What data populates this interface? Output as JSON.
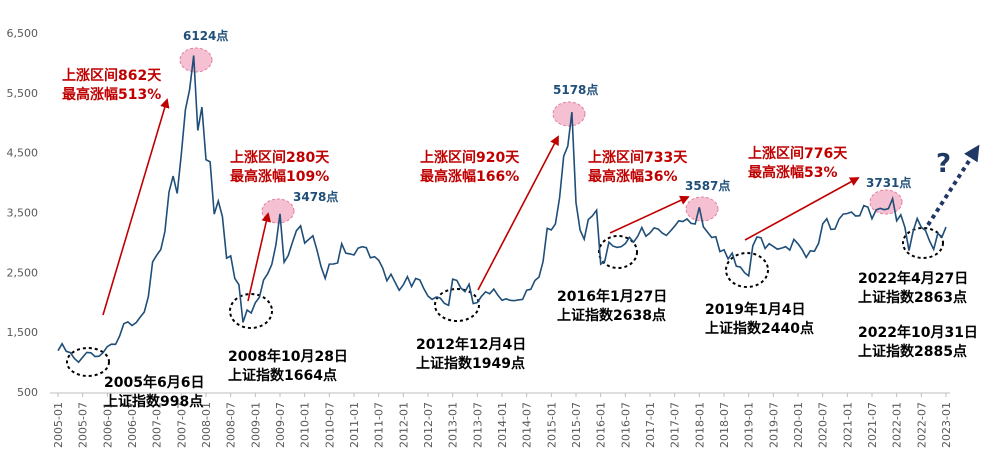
{
  "chart_data": {
    "type": "line",
    "x": [
      "2005-01",
      "2005-02",
      "2005-03",
      "2005-04",
      "2005-05",
      "2005-06",
      "2005-07",
      "2005-08",
      "2005-09",
      "2005-10",
      "2005-11",
      "2005-12",
      "2006-01",
      "2006-02",
      "2006-03",
      "2006-04",
      "2006-05",
      "2006-06",
      "2006-07",
      "2006-08",
      "2006-09",
      "2006-10",
      "2006-11",
      "2006-12",
      "2007-01",
      "2007-02",
      "2007-03",
      "2007-04",
      "2007-05",
      "2007-06",
      "2007-07",
      "2007-08",
      "2007-09",
      "2007-10",
      "2007-11",
      "2007-12",
      "2008-01",
      "2008-02",
      "2008-03",
      "2008-04",
      "2008-05",
      "2008-06",
      "2008-07",
      "2008-08",
      "2008-09",
      "2008-10",
      "2008-11",
      "2008-12",
      "2009-01",
      "2009-02",
      "2009-03",
      "2009-04",
      "2009-05",
      "2009-06",
      "2009-07",
      "2009-08",
      "2009-09",
      "2009-10",
      "2009-11",
      "2009-12",
      "2010-01",
      "2010-02",
      "2010-03",
      "2010-04",
      "2010-05",
      "2010-06",
      "2010-07",
      "2010-08",
      "2010-09",
      "2010-10",
      "2010-11",
      "2010-12",
      "2011-01",
      "2011-02",
      "2011-03",
      "2011-04",
      "2011-05",
      "2011-06",
      "2011-07",
      "2011-08",
      "2011-09",
      "2011-10",
      "2011-11",
      "2011-12",
      "2012-01",
      "2012-02",
      "2012-03",
      "2012-04",
      "2012-05",
      "2012-06",
      "2012-07",
      "2012-08",
      "2012-09",
      "2012-10",
      "2012-11",
      "2012-12",
      "2013-01",
      "2013-02",
      "2013-03",
      "2013-04",
      "2013-05",
      "2013-06",
      "2013-07",
      "2013-08",
      "2013-09",
      "2013-10",
      "2013-11",
      "2013-12",
      "2014-01",
      "2014-02",
      "2014-03",
      "2014-04",
      "2014-05",
      "2014-06",
      "2014-07",
      "2014-08",
      "2014-09",
      "2014-10",
      "2014-11",
      "2014-12",
      "2015-01",
      "2015-02",
      "2015-03",
      "2015-04",
      "2015-05",
      "2015-06",
      "2015-07",
      "2015-08",
      "2015-09",
      "2015-10",
      "2015-11",
      "2015-12",
      "2016-01",
      "2016-02",
      "2016-03",
      "2016-04",
      "2016-05",
      "2016-06",
      "2016-07",
      "2016-08",
      "2016-09",
      "2016-10",
      "2016-11",
      "2016-12",
      "2017-01",
      "2017-02",
      "2017-03",
      "2017-04",
      "2017-05",
      "2017-06",
      "2017-07",
      "2017-08",
      "2017-09",
      "2017-10",
      "2017-11",
      "2017-12",
      "2018-01",
      "2018-02",
      "2018-03",
      "2018-04",
      "2018-05",
      "2018-06",
      "2018-07",
      "2018-08",
      "2018-09",
      "2018-10",
      "2018-11",
      "2018-12",
      "2019-01",
      "2019-02",
      "2019-03",
      "2019-04",
      "2019-05",
      "2019-06",
      "2019-07",
      "2019-08",
      "2019-09",
      "2019-10",
      "2019-11",
      "2019-12",
      "2020-01",
      "2020-02",
      "2020-03",
      "2020-04",
      "2020-05",
      "2020-06",
      "2020-07",
      "2020-08",
      "2020-09",
      "2020-10",
      "2020-11",
      "2020-12",
      "2021-01",
      "2021-02",
      "2021-03",
      "2021-04",
      "2021-05",
      "2021-06",
      "2021-07",
      "2021-08",
      "2021-09",
      "2021-10",
      "2021-11",
      "2021-12",
      "2022-01",
      "2022-02",
      "2022-03",
      "2022-04",
      "2022-05",
      "2022-06",
      "2022-07",
      "2022-08",
      "2022-09",
      "2022-10",
      "2022-11",
      "2022-12",
      "2023-01"
    ],
    "series": [
      {
        "color": "#1f4e79",
        "values": [
          1191,
          1306,
          1181,
          1159,
          1060,
          998,
          1083,
          1162,
          1155,
          1092,
          1099,
          1161,
          1258,
          1299,
          1298,
          1440,
          1641,
          1672,
          1612,
          1658,
          1752,
          1837,
          2099,
          2675,
          2786,
          2881,
          3183,
          3841,
          4109,
          3820,
          4471,
          5218,
          5552,
          6124,
          4871,
          5262,
          4383,
          4348,
          3473,
          3693,
          3433,
          2736,
          2775,
          2397,
          2293,
          1664,
          1871,
          1821,
          1991,
          2082,
          2373,
          2477,
          2633,
          2959,
          3478,
          2667,
          2779,
          2996,
          3195,
          3277,
          2989,
          3051,
          3110,
          2870,
          2592,
          2398,
          2638,
          2639,
          2656,
          2979,
          2820,
          2808,
          2790,
          2905,
          2928,
          2911,
          2743,
          2762,
          2701,
          2568,
          2359,
          2468,
          2333,
          2199,
          2292,
          2428,
          2263,
          2397,
          2373,
          2225,
          2103,
          2047,
          2086,
          2069,
          1980,
          1949,
          2385,
          2366,
          2237,
          2178,
          2301,
          1979,
          1994,
          2098,
          2175,
          2141,
          2220,
          2116,
          2033,
          2056,
          2033,
          2026,
          2039,
          2048,
          2201,
          2217,
          2364,
          2420,
          2683,
          3235,
          3210,
          3310,
          3748,
          4441,
          4612,
          5178,
          3664,
          3206,
          3053,
          3383,
          3445,
          3539,
          2638,
          2688,
          3004,
          2938,
          2917,
          2930,
          2979,
          3085,
          3005,
          3100,
          3250,
          3104,
          3159,
          3242,
          3223,
          3155,
          3117,
          3192,
          3273,
          3361,
          3349,
          3393,
          3317,
          3307,
          3587,
          3259,
          3169,
          3082,
          3095,
          2847,
          2876,
          2725,
          2821,
          2603,
          2588,
          2494,
          2440,
          2941,
          3091,
          3078,
          2899,
          2979,
          2933,
          2886,
          2905,
          2929,
          2872,
          3050,
          2977,
          2880,
          2750,
          2860,
          2852,
          2985,
          3310,
          3396,
          3218,
          3225,
          3392,
          3473,
          3483,
          3509,
          3441,
          3447,
          3615,
          3591,
          3397,
          3544,
          3568,
          3547,
          3564,
          3731,
          3362,
          3462,
          3252,
          2863,
          3186,
          3399,
          3253,
          3202,
          3024,
          2885,
          3151,
          3089,
          3256
        ]
      }
    ],
    "ylim": [
      500,
      6500
    ],
    "yticks": [
      {
        "value": 500,
        "label": "500"
      },
      {
        "value": 1500,
        "label": "1,500"
      },
      {
        "value": 2500,
        "label": "2,500"
      },
      {
        "value": 3500,
        "label": "3,500"
      },
      {
        "value": 4500,
        "label": "4,500"
      },
      {
        "value": 5500,
        "label": "5,500"
      },
      {
        "value": 6500,
        "label": "6,500"
      }
    ],
    "annotations": [
      {
        "color": "#c00000",
        "lines": [
          "上涨区间862天",
          "最高涨幅513%"
        ]
      },
      {
        "color": "#c00000",
        "lines": [
          "上涨区间280天",
          "最高涨幅109%"
        ]
      },
      {
        "color": "#c00000",
        "lines": [
          "上涨区间920天",
          "最高涨幅166%"
        ]
      },
      {
        "color": "#c00000",
        "lines": [
          "上涨区间733天",
          "最高涨幅36%"
        ]
      },
      {
        "color": "#c00000",
        "lines": [
          "上涨区间776天",
          "最高涨幅53%"
        ]
      },
      {
        "color": "#1f4e79",
        "lines": [
          "6124点"
        ]
      },
      {
        "color": "#1f4e79",
        "lines": [
          "5178点"
        ]
      },
      {
        "color": "#1f4e79",
        "lines": [
          "3478点"
        ]
      },
      {
        "color": "#1f4e79",
        "lines": [
          "3587点"
        ]
      },
      {
        "color": "#1f4e79",
        "lines": [
          "3731点"
        ]
      },
      {
        "color": "#000000",
        "lines": [
          "2005年6月6日",
          "上证指数998点"
        ]
      },
      {
        "color": "#000000",
        "lines": [
          "2008年10月28日",
          "上证指数1664点"
        ]
      },
      {
        "color": "#000000",
        "lines": [
          "2012年12月4日",
          "上证指数1949点"
        ]
      },
      {
        "color": "#000000",
        "lines": [
          "2016年1月27日",
          "上证指数2638点"
        ]
      },
      {
        "color": "#000000",
        "lines": [
          "2019年1月4日",
          "上证指数2440点"
        ]
      },
      {
        "color": "#000000",
        "lines": [
          "2022年4月27日",
          "上证指数2863点"
        ]
      },
      {
        "color": "#000000",
        "lines": [
          "2022年10月31日",
          "上证指数2885点"
        ]
      },
      {
        "color": "#1f3864",
        "lines": [
          "?"
        ]
      }
    ]
  }
}
